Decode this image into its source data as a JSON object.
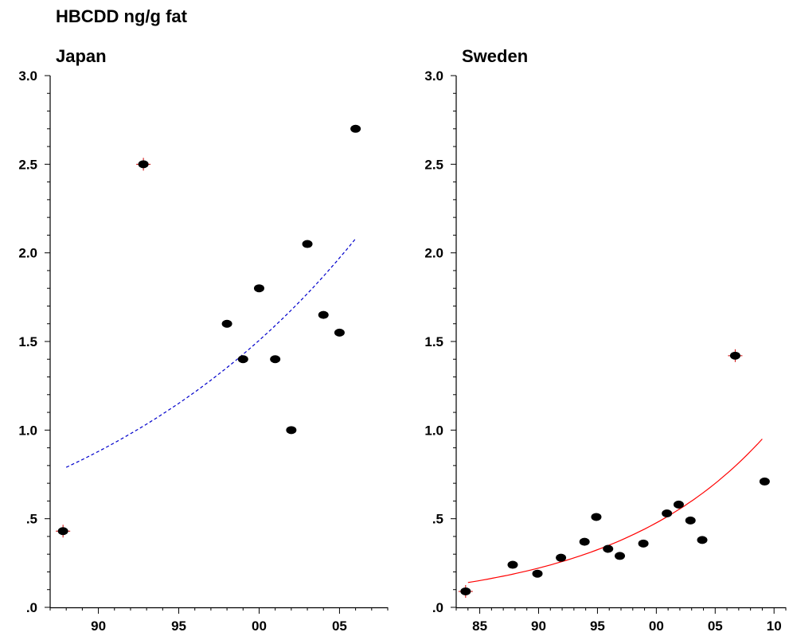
{
  "page_title": "HBCDD ng/g fat",
  "chart_data": [
    {
      "type": "scatter",
      "title": "Japan",
      "xlabel": "",
      "ylabel": "",
      "xlim": [
        1987,
        2008
      ],
      "ylim": [
        0,
        3
      ],
      "x_ticks": [
        1990,
        1995,
        2000,
        2005
      ],
      "x_tick_labels": [
        "90",
        "95",
        "00",
        "05"
      ],
      "y_ticks": [
        0,
        0.5,
        1.0,
        1.5,
        2.0,
        2.5,
        3.0
      ],
      "y_tick_labels": [
        ".0",
        ".5",
        "1.0",
        "1.5",
        "2.0",
        "2.5",
        "3.0"
      ],
      "grid": false,
      "points": [
        {
          "x": 1987.8,
          "y": 0.43,
          "outlier": true
        },
        {
          "x": 1992.8,
          "y": 2.5,
          "outlier": true
        },
        {
          "x": 1998.0,
          "y": 1.6
        },
        {
          "x": 1999.0,
          "y": 1.4
        },
        {
          "x": 2000.0,
          "y": 1.8
        },
        {
          "x": 2001.0,
          "y": 1.4
        },
        {
          "x": 2002.0,
          "y": 1.0
        },
        {
          "x": 2003.0,
          "y": 2.05
        },
        {
          "x": 2004.0,
          "y": 1.65
        },
        {
          "x": 2005.0,
          "y": 1.55
        },
        {
          "x": 2006.0,
          "y": 2.7
        }
      ],
      "trend": {
        "style": "dashed",
        "color": "#0000cc",
        "x": [
          1988,
          2006
        ],
        "y": [
          0.79,
          2.08
        ]
      }
    },
    {
      "type": "scatter",
      "title": "Sweden",
      "xlabel": "",
      "ylabel": "",
      "xlim": [
        1983,
        2011
      ],
      "ylim": [
        0,
        3
      ],
      "x_ticks": [
        1985,
        1990,
        1995,
        2000,
        2005,
        2010
      ],
      "x_tick_labels": [
        "85",
        "90",
        "95",
        "00",
        "05",
        "10"
      ],
      "y_ticks": [
        0,
        0.5,
        1.0,
        1.5,
        2.0,
        2.5,
        3.0
      ],
      "y_tick_labels": [
        ".0",
        ".5",
        "1.0",
        "1.5",
        "2.0",
        "2.5",
        "3.0"
      ],
      "grid": false,
      "points": [
        {
          "x": 1983.8,
          "y": 0.09,
          "outlier": true
        },
        {
          "x": 1987.8,
          "y": 0.24
        },
        {
          "x": 1989.9,
          "y": 0.19
        },
        {
          "x": 1991.9,
          "y": 0.28
        },
        {
          "x": 1993.9,
          "y": 0.37
        },
        {
          "x": 1994.9,
          "y": 0.51
        },
        {
          "x": 1995.9,
          "y": 0.33
        },
        {
          "x": 1996.9,
          "y": 0.29
        },
        {
          "x": 1998.9,
          "y": 0.36
        },
        {
          "x": 2000.9,
          "y": 0.53
        },
        {
          "x": 2001.9,
          "y": 0.58
        },
        {
          "x": 2002.9,
          "y": 0.49
        },
        {
          "x": 2003.9,
          "y": 0.38
        },
        {
          "x": 2006.7,
          "y": 1.42,
          "outlier": true
        },
        {
          "x": 2009.2,
          "y": 0.71
        }
      ],
      "trend": {
        "style": "solid",
        "color": "#ff0000",
        "x": [
          1984,
          2009
        ],
        "y": [
          0.14,
          0.95
        ]
      }
    }
  ]
}
